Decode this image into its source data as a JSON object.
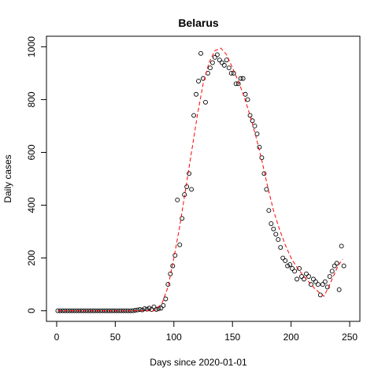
{
  "chart_data": {
    "type": "scatter",
    "title": "Belarus",
    "xlabel": "Days since 2020-01-01",
    "ylabel": "Daily cases",
    "xlim": [
      -8.7,
      258.7
    ],
    "ylim": [
      -40,
      1040
    ],
    "xticks": [
      0,
      50,
      100,
      150,
      200,
      250
    ],
    "yticks": [
      0,
      200,
      400,
      600,
      800,
      1000
    ],
    "color": "#000000",
    "x": [
      1,
      3,
      5,
      7,
      9,
      11,
      13,
      15,
      17,
      19,
      21,
      23,
      25,
      27,
      29,
      31,
      33,
      35,
      37,
      39,
      41,
      43,
      45,
      47,
      49,
      51,
      53,
      55,
      57,
      59,
      61,
      63,
      65,
      67,
      69,
      71,
      73,
      75,
      77,
      79,
      81,
      83,
      85,
      87,
      89,
      91,
      93,
      95,
      97,
      99,
      101,
      103,
      105,
      107,
      109,
      111,
      113,
      115,
      117,
      119,
      121,
      123,
      125,
      127,
      129,
      131,
      133,
      135,
      137,
      139,
      141,
      143,
      145,
      147,
      149,
      151,
      153,
      155,
      157,
      159,
      161,
      163,
      165,
      167,
      169,
      171,
      173,
      175,
      177,
      179,
      181,
      183,
      185,
      187,
      189,
      191,
      193,
      195,
      197,
      199,
      201,
      203,
      205,
      207,
      209,
      211,
      213,
      215,
      217,
      219,
      221,
      223,
      225,
      227,
      229,
      231,
      233,
      235,
      237,
      239,
      241,
      243,
      245
    ],
    "values": [
      0,
      0,
      0,
      0,
      0,
      0,
      0,
      0,
      0,
      0,
      0,
      0,
      0,
      0,
      0,
      0,
      0,
      0,
      0,
      0,
      0,
      0,
      0,
      0,
      0,
      0,
      0,
      0,
      0,
      0,
      0,
      0,
      0,
      2,
      3,
      5,
      3,
      8,
      6,
      10,
      5,
      15,
      5,
      8,
      10,
      20,
      45,
      100,
      140,
      170,
      210,
      420,
      250,
      350,
      440,
      470,
      520,
      460,
      740,
      820,
      870,
      975,
      880,
      790,
      900,
      920,
      940,
      960,
      970,
      950,
      940,
      930,
      950,
      920,
      900,
      900,
      860,
      860,
      880,
      880,
      820,
      800,
      740,
      720,
      700,
      670,
      620,
      580,
      520,
      460,
      380,
      330,
      310,
      290,
      270,
      240,
      200,
      190,
      170,
      175,
      160,
      150,
      120,
      160,
      130,
      120,
      140,
      130,
      100,
      120,
      110,
      100,
      60,
      100,
      110,
      90,
      130,
      150,
      170,
      180,
      80,
      245,
      170
    ],
    "fit": {
      "color": "#ff0000",
      "x": [
        1,
        83,
        85,
        90,
        95,
        100,
        105,
        110,
        115,
        120,
        125,
        130,
        135,
        140,
        145,
        150,
        155,
        160,
        165,
        170,
        175,
        180,
        185,
        190,
        195,
        200,
        205,
        210,
        215,
        220,
        225,
        228,
        232,
        236,
        240,
        244
      ],
      "values": [
        0,
        0,
        5,
        30,
        90,
        200,
        320,
        460,
        600,
        740,
        860,
        940,
        985,
        995,
        970,
        920,
        870,
        810,
        740,
        660,
        570,
        470,
        380,
        310,
        250,
        200,
        165,
        135,
        110,
        85,
        65,
        55,
        90,
        130,
        170,
        195
      ]
    }
  }
}
